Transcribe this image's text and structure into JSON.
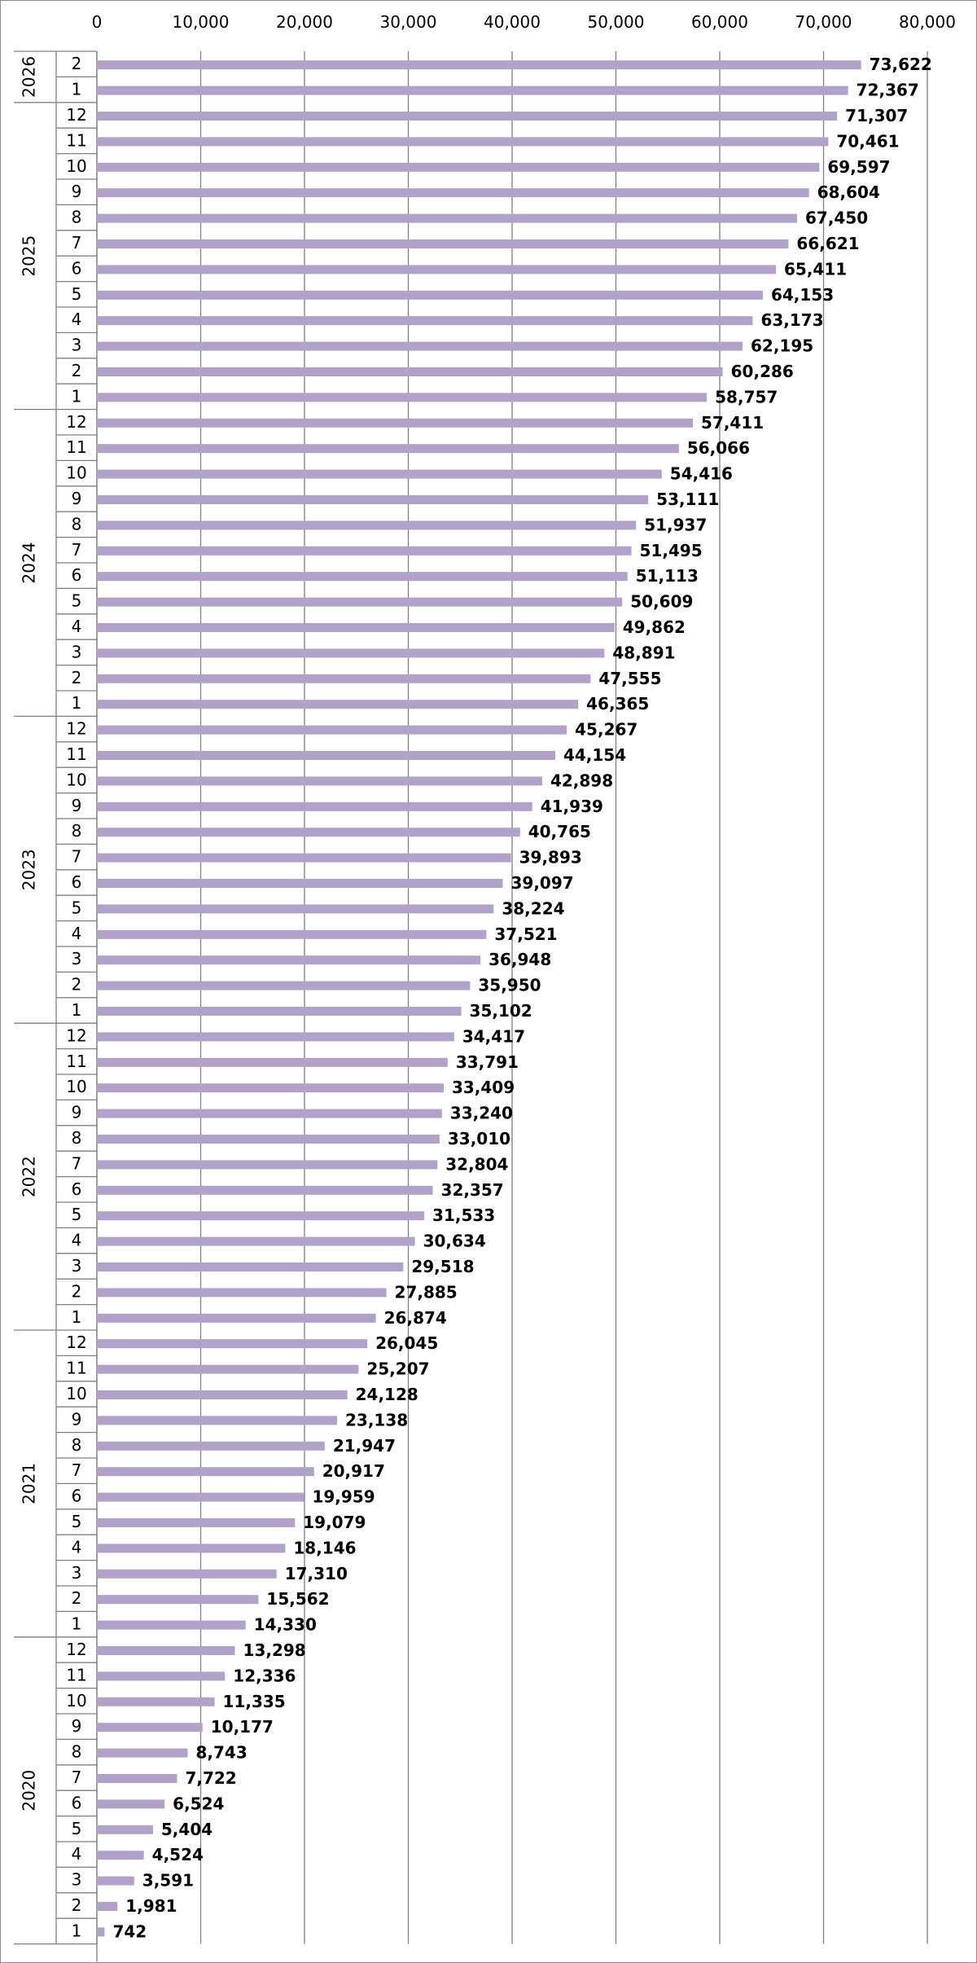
{
  "chart_data": {
    "type": "bar",
    "orientation": "horizontal",
    "title": "",
    "xlabel": "",
    "ylabel": "",
    "xlim": [
      0,
      80000
    ],
    "x_ticks": [
      "0",
      "10,000",
      "20,000",
      "30,000",
      "40,000",
      "50,000",
      "60,000",
      "70,000",
      "80,000"
    ],
    "x_tick_values": [
      0,
      10000,
      20000,
      30000,
      40000,
      50000,
      60000,
      70000,
      80000
    ],
    "grid": true,
    "bar_color": "#b0a2c8",
    "gridline_color": "#808080",
    "groups": [
      {
        "year": "2026",
        "months": [
          "2",
          "1"
        ],
        "values": [
          73622,
          72367
        ],
        "labels": [
          "73,622",
          "72,367"
        ]
      },
      {
        "year": "2025",
        "months": [
          "12",
          "11",
          "10",
          "9",
          "8",
          "7",
          "6",
          "5",
          "4",
          "3",
          "2",
          "1"
        ],
        "values": [
          71307,
          70461,
          69597,
          68604,
          67450,
          66621,
          65411,
          64153,
          63173,
          62195,
          60286,
          58757
        ],
        "labels": [
          "71,307",
          "70,461",
          "69,597",
          "68,604",
          "67,450",
          "66,621",
          "65,411",
          "64,153",
          "63,173",
          "62,195",
          "60,286",
          "58,757"
        ]
      },
      {
        "year": "2024",
        "months": [
          "12",
          "11",
          "10",
          "9",
          "8",
          "7",
          "6",
          "5",
          "4",
          "3",
          "2",
          "1"
        ],
        "values": [
          57411,
          56066,
          54416,
          53111,
          51937,
          51495,
          51113,
          50609,
          49862,
          48891,
          47555,
          46365
        ],
        "labels": [
          "57,411",
          "56,066",
          "54,416",
          "53,111",
          "51,937",
          "51,495",
          "51,113",
          "50,609",
          "49,862",
          "48,891",
          "47,555",
          "46,365"
        ]
      },
      {
        "year": "2023",
        "months": [
          "12",
          "11",
          "10",
          "9",
          "8",
          "7",
          "6",
          "5",
          "4",
          "3",
          "2",
          "1"
        ],
        "values": [
          45267,
          44154,
          42898,
          41939,
          40765,
          39893,
          39097,
          38224,
          37521,
          36948,
          35950,
          35102
        ],
        "labels": [
          "45,267",
          "44,154",
          "42,898",
          "41,939",
          "40,765",
          "39,893",
          "39,097",
          "38,224",
          "37,521",
          "36,948",
          "35,950",
          "35,102"
        ]
      },
      {
        "year": "2022",
        "months": [
          "12",
          "11",
          "10",
          "9",
          "8",
          "7",
          "6",
          "5",
          "4",
          "3",
          "2",
          "1"
        ],
        "values": [
          34417,
          33791,
          33409,
          33240,
          33010,
          32804,
          32357,
          31533,
          30634,
          29518,
          27885,
          26874
        ],
        "labels": [
          "34,417",
          "33,791",
          "33,409",
          "33,240",
          "33,010",
          "32,804",
          "32,357",
          "31,533",
          "30,634",
          "29,518",
          "27,885",
          "26,874"
        ]
      },
      {
        "year": "2021",
        "months": [
          "12",
          "11",
          "10",
          "9",
          "8",
          "7",
          "6",
          "5",
          "4",
          "3",
          "2",
          "1"
        ],
        "values": [
          26045,
          25207,
          24128,
          23138,
          21947,
          20917,
          19959,
          19079,
          18146,
          17310,
          15562,
          14330
        ],
        "labels": [
          "26,045",
          "25,207",
          "24,128",
          "23,138",
          "21,947",
          "20,917",
          "19,959",
          "19,079",
          "18,146",
          "17,310",
          "15,562",
          "14,330"
        ]
      },
      {
        "year": "2020",
        "months": [
          "12",
          "11",
          "10",
          "9",
          "8",
          "7",
          "6",
          "5",
          "4",
          "3",
          "2",
          "1"
        ],
        "values": [
          13298,
          12336,
          11335,
          10177,
          8743,
          7722,
          6524,
          5404,
          4524,
          3591,
          1981,
          742
        ],
        "labels": [
          "13,298",
          "12,336",
          "11,335",
          "10,177",
          "8,743",
          "7,722",
          "6,524",
          "5,404",
          "4,524",
          "3,591",
          "1,981",
          "742"
        ]
      }
    ]
  }
}
